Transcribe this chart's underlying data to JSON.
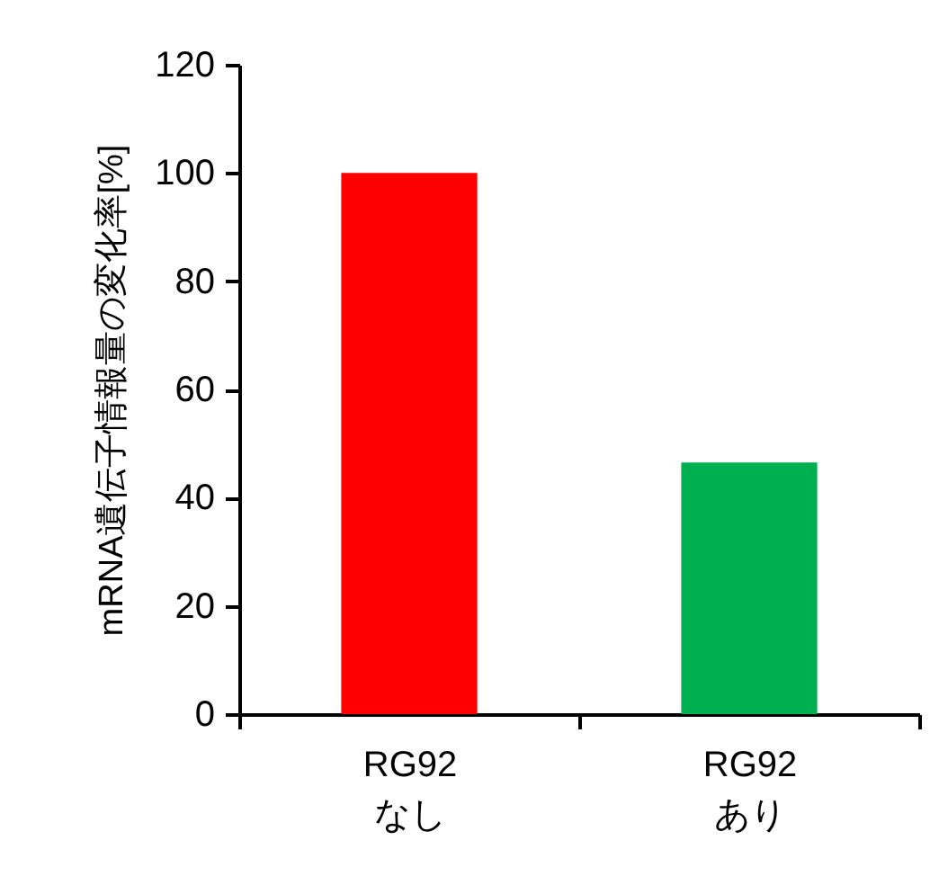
{
  "chart_data": {
    "type": "bar",
    "ylabel": "mRNA遺伝子情報量の変化率[%]",
    "categories": [
      "RG92 なし",
      "RG92 あり"
    ],
    "values": [
      100,
      46.5
    ],
    "colors": [
      "#ff0000",
      "#00b050"
    ],
    "ylim": [
      0,
      120
    ],
    "yticks": [
      0,
      20,
      40,
      60,
      80,
      100,
      120
    ],
    "grid": false,
    "legend": false
  }
}
